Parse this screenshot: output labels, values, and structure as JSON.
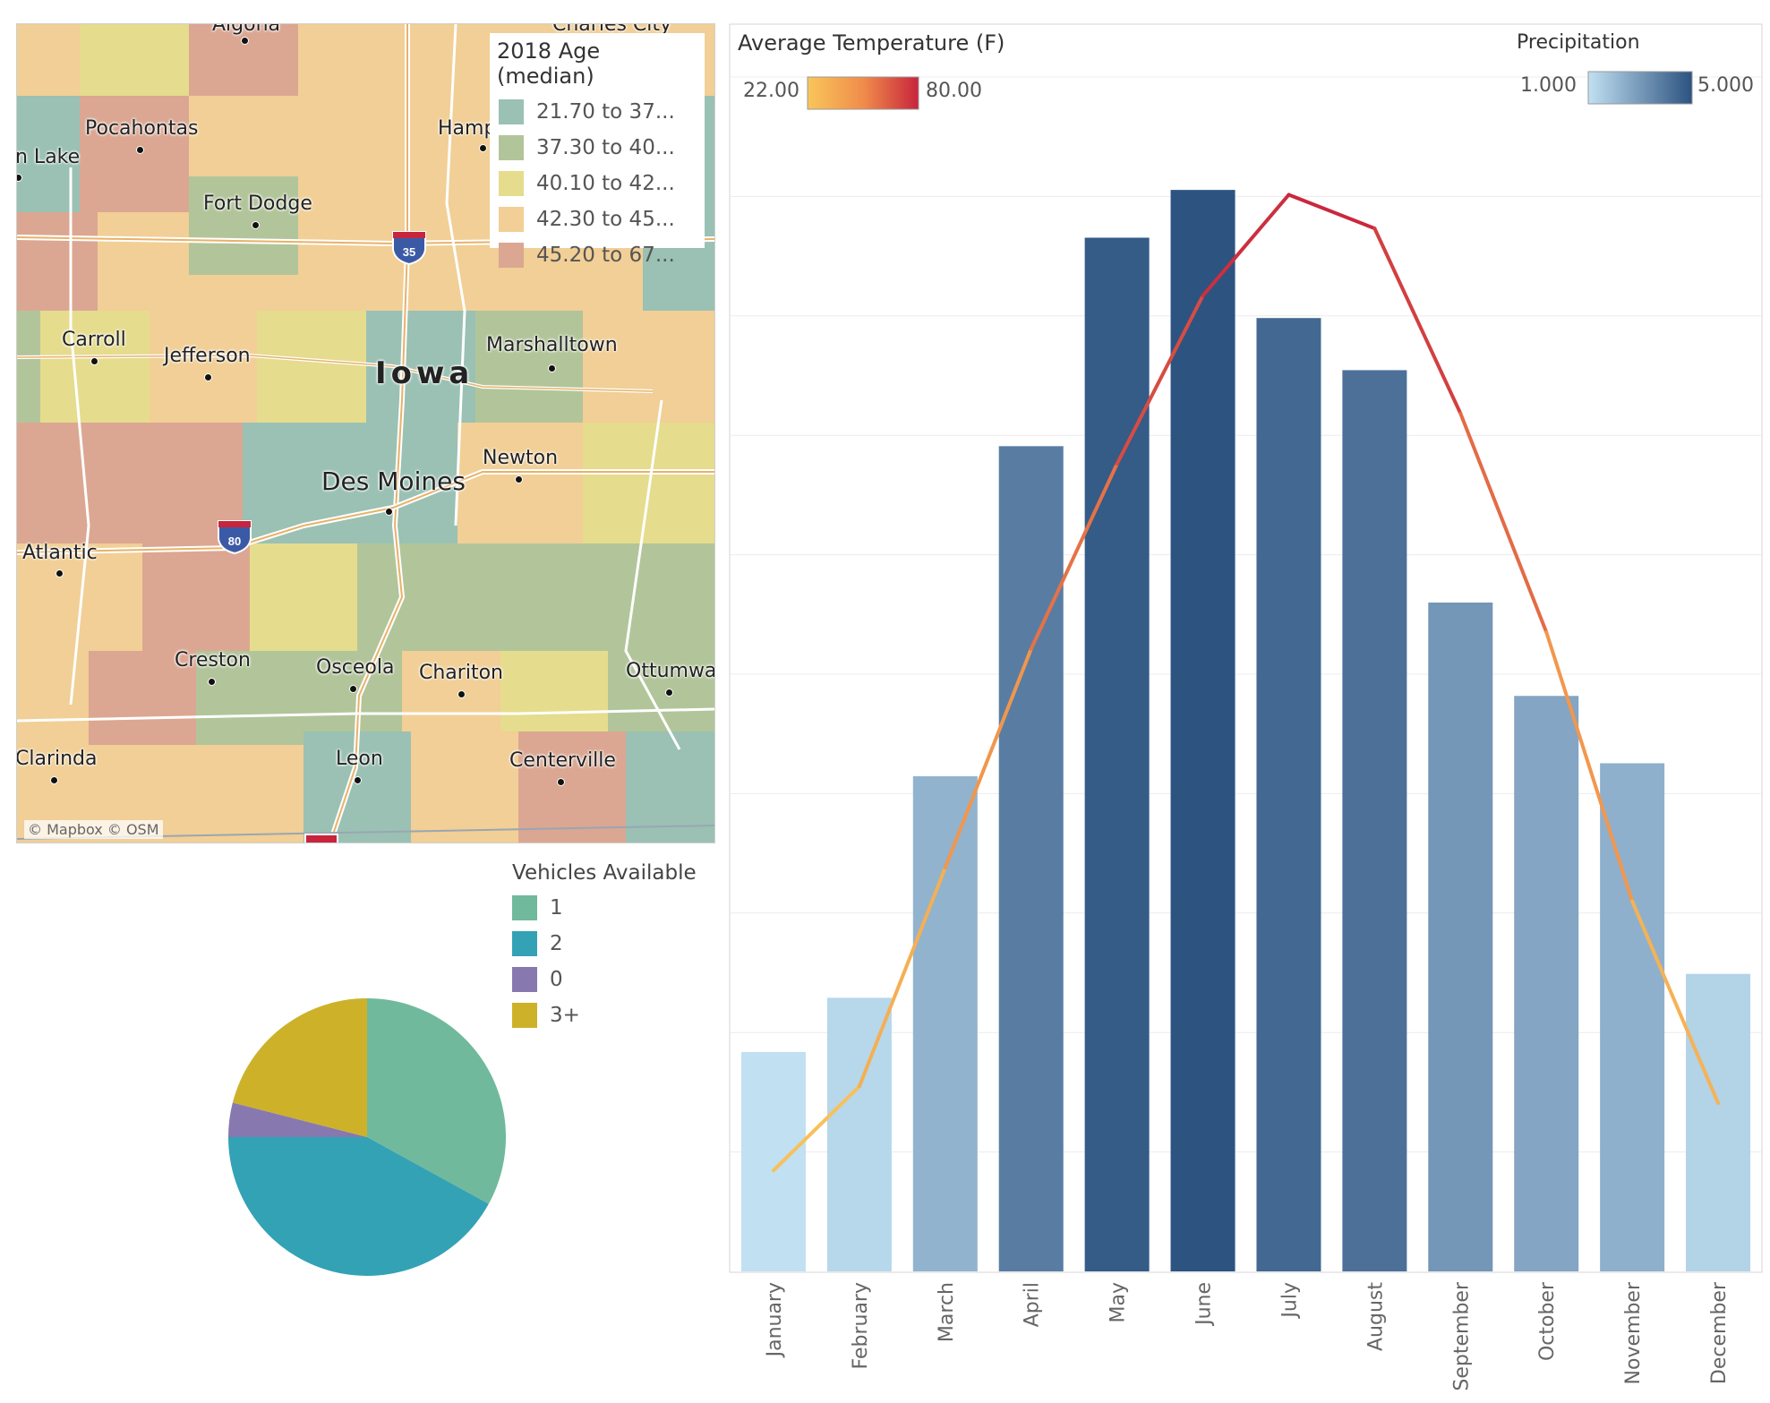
{
  "map": {
    "legend_title": "2018 Age (median)",
    "legend": [
      {
        "label": "21.70 to 37...",
        "color": "#9ac1b4"
      },
      {
        "label": "37.30 to 40...",
        "color": "#b2c59a"
      },
      {
        "label": "40.10 to 42...",
        "color": "#e5dc8e"
      },
      {
        "label": "42.30 to 45...",
        "color": "#f1cf96"
      },
      {
        "label": "45.20 to 67...",
        "color": "#dba792"
      }
    ],
    "places": {
      "algona": "Algona",
      "charles_city": "Charles City",
      "pocahontas": "Pocahontas",
      "storm_lake": "n Lake",
      "hampton": "Hamp",
      "fort_dodge": "Fort Dodge",
      "carroll": "Carroll",
      "jefferson": "Jefferson",
      "iowa": "Iowa",
      "marshalltown": "Marshalltown",
      "newton": "Newton",
      "des_moines": "Des Moines",
      "atlantic": "Atlantic",
      "creston": "Creston",
      "osceola": "Osceola",
      "chariton": "Chariton",
      "ottumwa": "Ottumwa",
      "clarinda": "Clarinda",
      "leon": "Leon",
      "centerville": "Centerville"
    },
    "shields": {
      "i35": "35",
      "i80": "80"
    },
    "attribution": "© Mapbox  © OSM"
  },
  "vehicles": {
    "legend_title": "Vehicles Available",
    "items": [
      {
        "label": "1",
        "value": 33,
        "color": "#70b99c"
      },
      {
        "label": "2",
        "value": 42,
        "color": "#33a2b5"
      },
      {
        "label": "0",
        "value": 4,
        "color": "#8878b0"
      },
      {
        "label": "3+",
        "value": 21,
        "color": "#cdb229"
      }
    ]
  },
  "chart_data": {
    "type": "bar",
    "title": "Average Temperature (F)",
    "categories": [
      "January",
      "February",
      "March",
      "April",
      "May",
      "June",
      "July",
      "August",
      "September",
      "October",
      "November",
      "December"
    ],
    "series": [
      {
        "name": "Precipitation",
        "type": "bar",
        "values": [
          1.01,
          1.26,
          2.28,
          3.8,
          4.76,
          4.98,
          4.39,
          4.15,
          3.08,
          2.65,
          2.34,
          1.37
        ]
      },
      {
        "name": "Average Temperature (F)",
        "type": "line",
        "values": [
          22,
          27,
          40,
          53,
          64,
          74,
          80,
          78,
          67,
          54,
          38,
          26
        ]
      }
    ],
    "color_legends": [
      {
        "name": "Average Temperature (F)",
        "min": "22.00",
        "max": "80.00",
        "colors": [
          "#f9c55a",
          "#f08d4b",
          "#c8243c"
        ]
      },
      {
        "name": "Precipitation",
        "min": "1.000",
        "max": "5.000",
        "colors": [
          "#c1e0f2",
          "#2c5280"
        ]
      }
    ],
    "xlabel": "",
    "ylabel": "",
    "grid": true
  }
}
